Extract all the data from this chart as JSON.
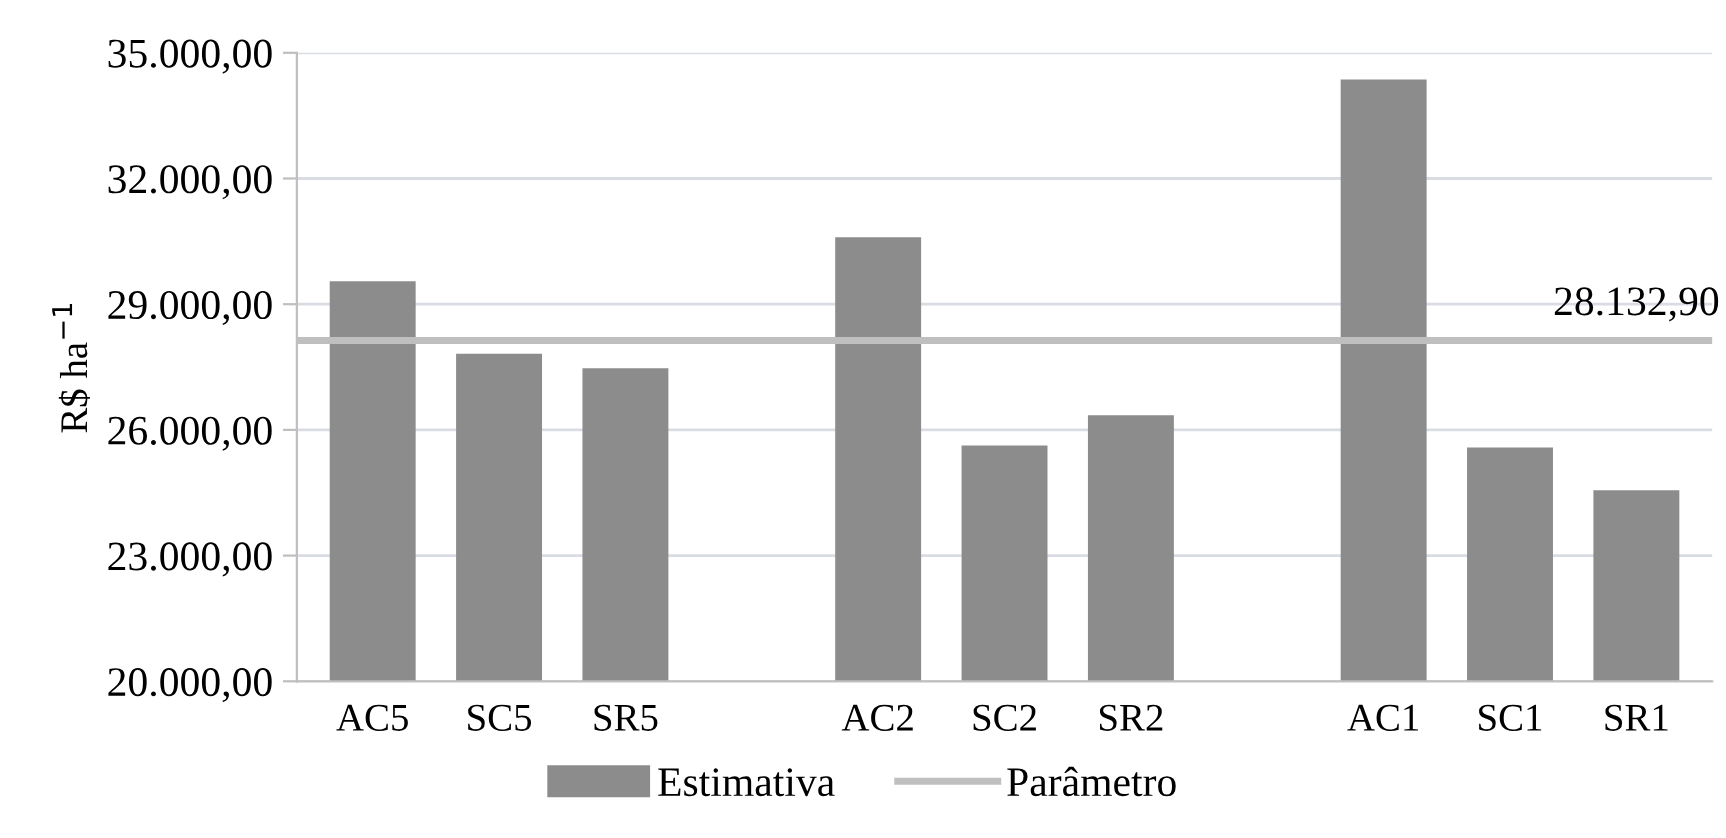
{
  "chart_data": {
    "type": "bar",
    "ylabel": "R$ ha$^{−1}$",
    "categories": [
      "AC5",
      "SC5",
      "SR5",
      null,
      "AC2",
      "SC2",
      "SR2",
      null,
      "AC1",
      "SC1",
      "SR1"
    ],
    "series": [
      {
        "name": "Estimativa",
        "color": "#8c8c8c",
        "values": [
          29550,
          27820,
          27470,
          null,
          30600,
          25630,
          26350,
          null,
          34360,
          25580,
          24560
        ]
      }
    ],
    "ylim": [
      20000,
      35000
    ],
    "yticks": [
      {
        "value": 20000,
        "label": "20.000,00"
      },
      {
        "value": 23000,
        "label": "23.000,00"
      },
      {
        "value": 26000,
        "label": "26.000,00"
      },
      {
        "value": 29000,
        "label": "29.000,00"
      },
      {
        "value": 32000,
        "label": "32.000,00"
      },
      {
        "value": 35000,
        "label": "35.000,00"
      }
    ],
    "ref_lines": [
      {
        "axis": "y",
        "value": 28132.9,
        "label": "Parâmetro",
        "color": "#bfbfbf"
      }
    ],
    "annotations": [
      {
        "text": "28.132,90",
        "x": "SR1",
        "y": 28132.9
      }
    ],
    "grid": "y",
    "legend": "bottom"
  }
}
